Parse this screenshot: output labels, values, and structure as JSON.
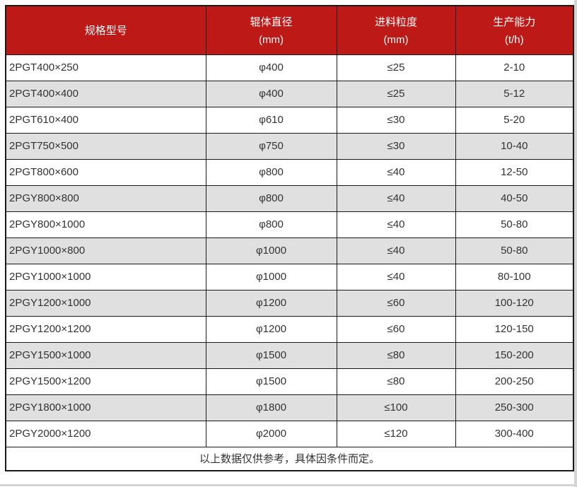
{
  "colors": {
    "header_bg": "#bd1a17",
    "header_text": "#ffffff",
    "row_alt_bg": "#e0e0e0",
    "border": "#1a1a1a",
    "body_text": "#333333"
  },
  "table": {
    "headers": [
      {
        "title": "规格型号",
        "unit": ""
      },
      {
        "title": "辊体直径",
        "unit": "(mm)"
      },
      {
        "title": "进料粒度",
        "unit": "(mm)"
      },
      {
        "title": "生产能力",
        "unit": "(t/h)"
      }
    ],
    "rows": [
      [
        "2PGT400×250",
        "φ400",
        "≤25",
        "2-10"
      ],
      [
        "2PGT400×400",
        "φ400",
        "≤25",
        "5-12"
      ],
      [
        "2PGT610×400",
        "φ610",
        "≤30",
        "5-20"
      ],
      [
        "2PGT750×500",
        "φ750",
        "≤30",
        "10-40"
      ],
      [
        "2PGT800×600",
        "φ800",
        "≤40",
        "12-50"
      ],
      [
        "2PGY800×800",
        "φ800",
        "≤40",
        "40-50"
      ],
      [
        "2PGY800×1000",
        "φ800",
        "≤40",
        "50-80"
      ],
      [
        "2PGY1000×800",
        "φ1000",
        "≤40",
        "50-80"
      ],
      [
        "2PGY1000×1000",
        "φ1000",
        "≤40",
        "80-100"
      ],
      [
        "2PGY1200×1000",
        "φ1200",
        "≤60",
        "100-120"
      ],
      [
        "2PGY1200×1200",
        "φ1200",
        "≤60",
        "120-150"
      ],
      [
        "2PGY1500×1000",
        "φ1500",
        "≤80",
        "150-200"
      ],
      [
        "2PGY1500×1200",
        "φ1500",
        "≤80",
        "200-250"
      ],
      [
        "2PGY1800×1000",
        "φ1800",
        "≤100",
        "250-300"
      ],
      [
        "2PGY2000×1200",
        "φ2000",
        "≤120",
        "300-400"
      ]
    ],
    "footer": "以上数据仅供参考，具体因条件而定。"
  }
}
